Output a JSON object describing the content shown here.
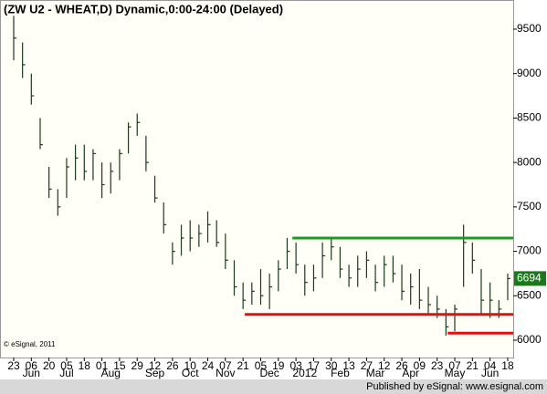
{
  "chart_data": {
    "type": "ohlc",
    "title": "(ZW U2 - WHEAT,D) Dynamic,0:00-24:00 (Delayed)",
    "categories": [
      "23",
      null,
      "06",
      null,
      "20",
      null,
      "05",
      null,
      "18",
      null,
      "01",
      null,
      "15",
      null,
      "29",
      null,
      "12",
      null,
      "26",
      null,
      "10",
      null,
      "24",
      null,
      "07",
      null,
      "21",
      null,
      "05",
      null,
      "19",
      null,
      "03",
      null,
      "17",
      null,
      "30",
      null,
      "13",
      null,
      "27",
      null,
      "12",
      null,
      "26",
      null,
      "09",
      null,
      "23",
      null,
      "07",
      null,
      "21",
      null,
      "04",
      null,
      "18"
    ],
    "months": [
      null,
      null,
      "Jun",
      null,
      null,
      null,
      "Jul",
      null,
      null,
      null,
      null,
      "Aug",
      null,
      null,
      null,
      null,
      "Sep",
      null,
      null,
      null,
      "Oct",
      null,
      null,
      null,
      "Nov",
      null,
      null,
      null,
      null,
      "Dec",
      null,
      null,
      null,
      "2012",
      null,
      null,
      null,
      "Feb",
      null,
      null,
      null,
      "Mar",
      null,
      null,
      null,
      "Apr",
      null,
      null,
      null,
      null,
      "May",
      null,
      null,
      null,
      "Jun",
      null,
      null
    ],
    "high": [
      9650,
      9350,
      9000,
      8500,
      7950,
      7700,
      8050,
      8200,
      8200,
      8150,
      8000,
      8000,
      8150,
      8450,
      8550,
      8300,
      7850,
      7550,
      7100,
      7300,
      7350,
      7300,
      7450,
      7350,
      7200,
      6900,
      6650,
      6650,
      6800,
      6750,
      6900,
      7150,
      7100,
      6850,
      6850,
      7100,
      7150,
      7050,
      6850,
      6950,
      7000,
      6850,
      6950,
      6950,
      6850,
      6750,
      6800,
      6600,
      6500,
      6350,
      6400,
      7300,
      7100,
      6800,
      6650,
      6450,
      6750
    ],
    "low": [
      9150,
      8950,
      8650,
      8150,
      7600,
      7400,
      7600,
      7800,
      7800,
      7800,
      7600,
      7650,
      7800,
      8100,
      8300,
      7900,
      7550,
      7200,
      6850,
      6950,
      7000,
      7050,
      7100,
      7050,
      6800,
      6500,
      6350,
      6400,
      6400,
      6350,
      6550,
      6800,
      6750,
      6500,
      6550,
      6700,
      6900,
      6700,
      6600,
      6600,
      6700,
      6550,
      6600,
      6650,
      6450,
      6400,
      6350,
      6300,
      6250,
      6050,
      6100,
      6600,
      6750,
      6300,
      6250,
      6250,
      6450
    ],
    "close": [
      9400,
      9100,
      8750,
      8200,
      7700,
      7500,
      7950,
      8050,
      7900,
      8100,
      7750,
      7900,
      8100,
      8400,
      8450,
      8000,
      7600,
      7300,
      7000,
      7150,
      7150,
      7200,
      7300,
      7100,
      6900,
      6600,
      6450,
      6550,
      6500,
      6600,
      6800,
      7000,
      6850,
      6650,
      6700,
      6950,
      7050,
      6800,
      6700,
      6800,
      6900,
      6650,
      6850,
      6750,
      6550,
      6600,
      6450,
      6400,
      6350,
      6150,
      6350,
      7100,
      6900,
      6450,
      6450,
      6350,
      6694
    ],
    "color": "#1c3a1c",
    "last_price": 6694,
    "lines": [
      {
        "value": 7150,
        "from": 31.6,
        "color": "#1e9a1e"
      },
      {
        "value": 6290,
        "from": 26.2,
        "color": "#e01010"
      },
      {
        "value": 6080,
        "from": 49.2,
        "color": "#e01010"
      }
    ],
    "ylim": [
      5805,
      9828
    ],
    "yticks": [
      6000,
      6500,
      7000,
      7500,
      8000,
      8500,
      9000,
      9500
    ],
    "copyright": "© eSignal, 2011",
    "footer": "Published by eSignal: www.esignal.com"
  }
}
